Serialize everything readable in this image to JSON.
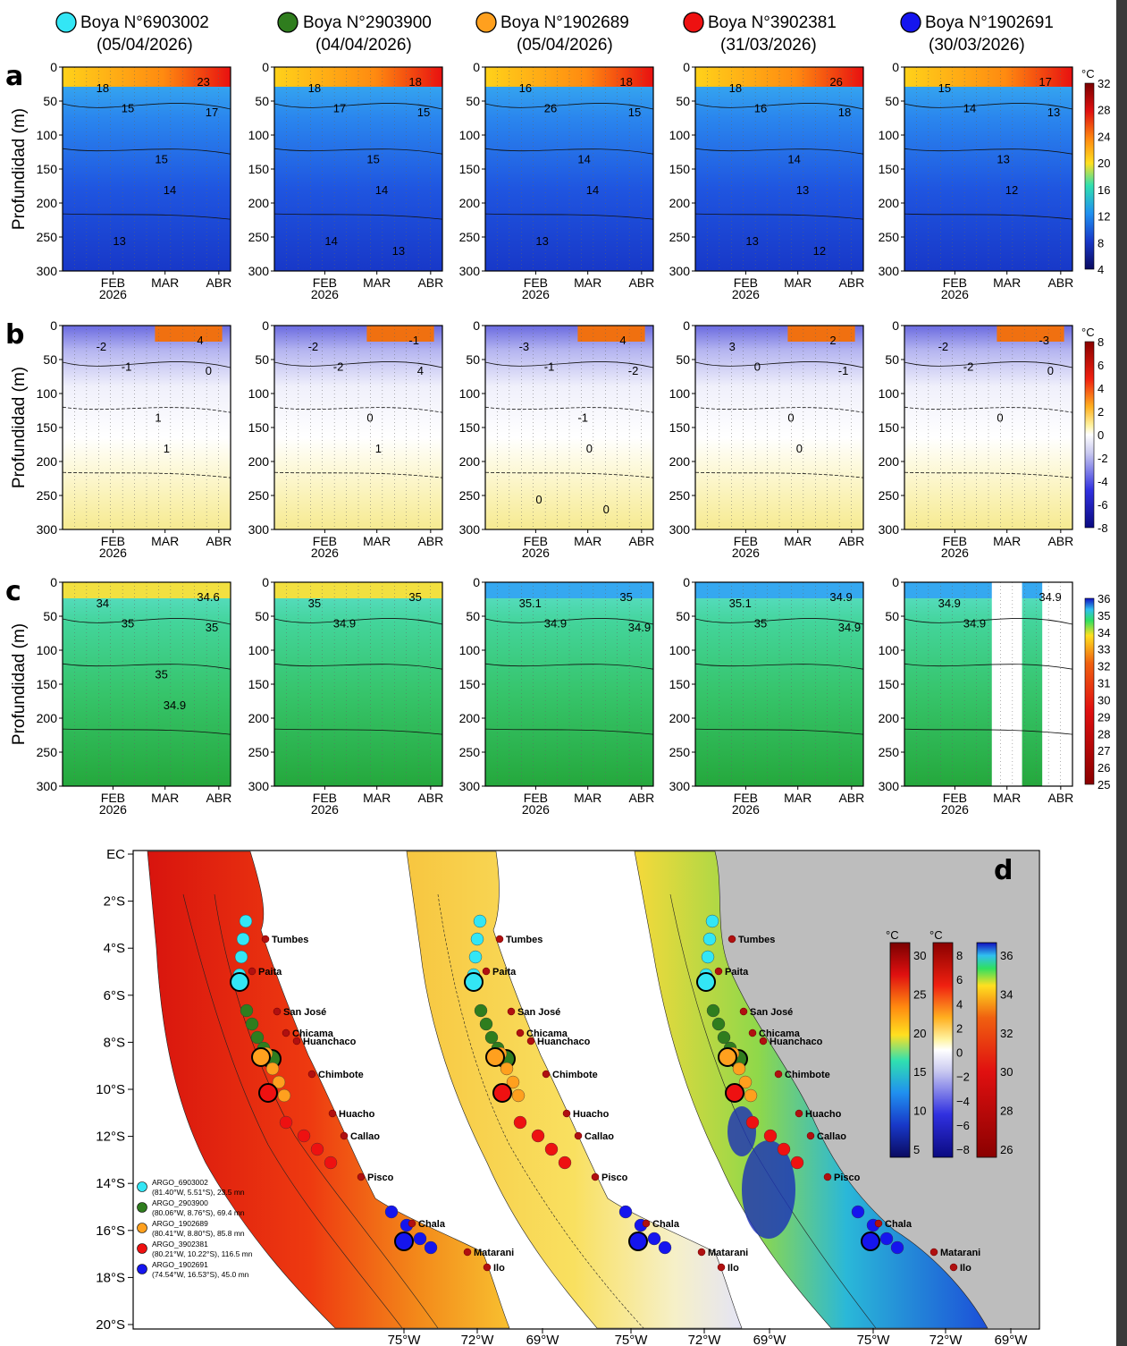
{
  "buoys": [
    {
      "name": "Boya N°6903002",
      "date": "(05/04/2026)",
      "color": "#33e6f5"
    },
    {
      "name": "Boya N°2903900",
      "date": "(04/04/2026)",
      "color": "#2f7d1e"
    },
    {
      "name": "Boya N°1902689",
      "date": "(05/04/2026)",
      "color": "#ffa01e"
    },
    {
      "name": "Boya N°3902381",
      "date": "(31/03/2026)",
      "color": "#ee1111"
    },
    {
      "name": "Boya N°1902691",
      "date": "(30/03/2026)",
      "color": "#1515ee"
    }
  ],
  "rows": [
    {
      "letter": "a",
      "ylabel": "Profundidad (m)",
      "unit": "°C",
      "colorbar_ticks": [
        "32",
        "28",
        "24",
        "20",
        "16",
        "12",
        "8",
        "4"
      ],
      "contour_labels": [
        [
          "18",
          "23",
          "15",
          "17",
          "15",
          "14",
          "13"
        ],
        [
          "18",
          "18",
          "17",
          "15",
          "15",
          "14",
          "14",
          "13"
        ],
        [
          "16",
          "18",
          "26",
          "15",
          "14",
          "14",
          "13"
        ],
        [
          "18",
          "26",
          "16",
          "18",
          "14",
          "13",
          "13",
          "12"
        ],
        [
          "15",
          "17",
          "14",
          "13",
          "13",
          "12"
        ]
      ]
    },
    {
      "letter": "b",
      "ylabel": "Profundidad (m)",
      "unit": "°C",
      "colorbar_ticks": [
        "8",
        "6",
        "4",
        "2",
        "0",
        "-2",
        "-4",
        "-6",
        "-8"
      ],
      "contour_labels": [
        [
          "-2",
          "4",
          "-1",
          "0",
          "1",
          "1"
        ],
        [
          "-2",
          "-1",
          "-2",
          "4",
          "0",
          "1"
        ],
        [
          "-3",
          "4",
          "-1",
          "-2",
          "-1",
          "0",
          "0",
          "0"
        ],
        [
          "3",
          "2",
          "0",
          "-1",
          "0",
          "0"
        ],
        [
          "-2",
          "-3",
          "-2",
          "0",
          "0"
        ]
      ]
    },
    {
      "letter": "c",
      "ylabel": "Profundidad (m)",
      "unit": "",
      "colorbar_ticks": [
        "36",
        "35",
        "34",
        "33",
        "32",
        "31",
        "30",
        "29",
        "28",
        "27",
        "26",
        "25"
      ],
      "contour_labels": [
        [
          "34",
          "34.6",
          "35",
          "35",
          "35",
          "34.9"
        ],
        [
          "35",
          "35",
          "34.9"
        ],
        [
          "35.1",
          "35",
          "34.9",
          "34.9"
        ],
        [
          "35.1",
          "34.9",
          "35",
          "34.9"
        ],
        [
          "34.9",
          "34.9",
          "34.9"
        ]
      ]
    }
  ],
  "axes": {
    "depth_ticks": [
      "0",
      "50",
      "100",
      "150",
      "200",
      "250",
      "300"
    ],
    "month_ticks": [
      "FEB",
      "MAR",
      "ABR"
    ],
    "year_label": "2026"
  },
  "map": {
    "letter": "d",
    "lat_labels": [
      "EC",
      "2°S",
      "4°S",
      "6°S",
      "8°S",
      "10°S",
      "12°S",
      "14°S",
      "16°S",
      "18°S",
      "20°S"
    ],
    "lon_labels": [
      "75°W",
      "72°W",
      "69°W",
      "75°W",
      "72°W",
      "69°W",
      "75°W",
      "72°W",
      "69°W"
    ],
    "cities": [
      "Tumbes",
      "Paita",
      "San José",
      "Chicama",
      "Huanchaco",
      "Chimbote",
      "Huacho",
      "Callao",
      "Pisco",
      "Chala",
      "Matarani",
      "Ilo"
    ],
    "legend": [
      {
        "id": "ARGO_6903002",
        "info": "(81.40°W, 5.51°S), 23.5 mn",
        "color": "#33e6f5"
      },
      {
        "id": "ARGO_2903900",
        "info": "(80.06°W, 8.76°S), 69.4 mn",
        "color": "#2f7d1e"
      },
      {
        "id": "ARGO_1902689",
        "info": "(80.41°W, 8.80°S), 85.8 mn",
        "color": "#ffa01e"
      },
      {
        "id": "ARGO_3902381",
        "info": "(80.21°W, 10.22°S), 116.5 mn",
        "color": "#ee1111"
      },
      {
        "id": "ARGO_1902691",
        "info": "(74.54°W, 16.53°S), 45.0 mn",
        "color": "#1515ee"
      }
    ],
    "colorbars": [
      {
        "unit": "°C",
        "ticks": [
          "30",
          "25",
          "20",
          "15",
          "10",
          "5"
        ]
      },
      {
        "unit": "°C",
        "ticks": [
          "8",
          "6",
          "4",
          "2",
          "0",
          "−2",
          "−4",
          "−6",
          "−8"
        ]
      },
      {
        "unit": "",
        "ticks": [
          "36",
          "34",
          "32",
          "30",
          "28",
          "26"
        ]
      }
    ]
  },
  "chart_data": [
    {
      "type": "heatmap",
      "variable": "temperatura",
      "ylabel": "Profundidad (m)",
      "ylim": [
        300,
        0
      ],
      "x_ticks": [
        "FEB 2026",
        "MAR",
        "ABR"
      ],
      "colorbar_range": [
        4,
        32
      ],
      "unit": "°C"
    },
    {
      "type": "heatmap",
      "variable": "anomalía de temperatura",
      "ylabel": "Profundidad (m)",
      "ylim": [
        300,
        0
      ],
      "x_ticks": [
        "FEB 2026",
        "MAR",
        "ABR"
      ],
      "colorbar_range": [
        -8,
        8
      ],
      "unit": "°C"
    },
    {
      "type": "heatmap",
      "variable": "salinidad",
      "ylabel": "Profundidad (m)",
      "ylim": [
        300,
        0
      ],
      "x_ticks": [
        "FEB 2026",
        "MAR",
        "ABR"
      ],
      "colorbar_range": [
        25,
        36
      ]
    }
  ]
}
